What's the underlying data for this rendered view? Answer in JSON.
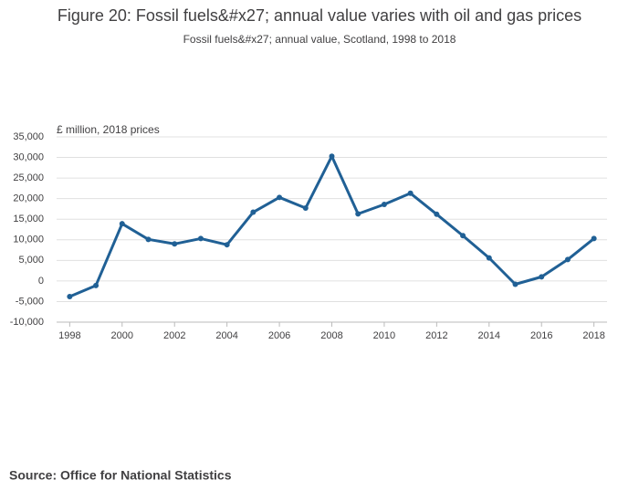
{
  "chart_data": {
    "type": "line",
    "title": "Figure 20: Fossil fuels&#x27; annual value varies with oil and gas prices",
    "subtitle": "Fossil fuels&#x27; annual value, Scotland, 1998 to 2018",
    "y_label": "£ million, 2018 prices",
    "source": "Source: Office for National Statistics",
    "x": [
      1998,
      1999,
      2000,
      2001,
      2002,
      2003,
      2004,
      2005,
      2006,
      2007,
      2008,
      2009,
      2010,
      2011,
      2012,
      2013,
      2014,
      2015,
      2016,
      2017,
      2018
    ],
    "series": [
      {
        "color": "#206095",
        "values": [
          -3800,
          -1100,
          13900,
          10100,
          9000,
          10300,
          8800,
          16700,
          20300,
          17700,
          30300,
          16300,
          18600,
          21300,
          16200,
          11000,
          5600,
          -800,
          1000,
          5200,
          10300
        ]
      }
    ],
    "xlim": [
      1997.5,
      2018.5
    ],
    "xticks": [
      1998,
      2000,
      2002,
      2004,
      2006,
      2008,
      2010,
      2012,
      2014,
      2016,
      2018
    ],
    "ylim": [
      -10000,
      35000
    ],
    "yticks": [
      {
        "value": -10000,
        "label": "-10,000"
      },
      {
        "value": -5000,
        "label": "-5,000"
      },
      0,
      {
        "value": 5000,
        "label": "5,000"
      },
      {
        "value": 10000,
        "label": "10,000"
      },
      {
        "value": 15000,
        "label": "15,000"
      },
      {
        "value": 20000,
        "label": "20,000"
      },
      {
        "value": 25000,
        "label": "25,000"
      },
      {
        "value": 30000,
        "label": "30,000"
      },
      {
        "value": 35000,
        "label": "35,000"
      }
    ],
    "grid": true
  }
}
